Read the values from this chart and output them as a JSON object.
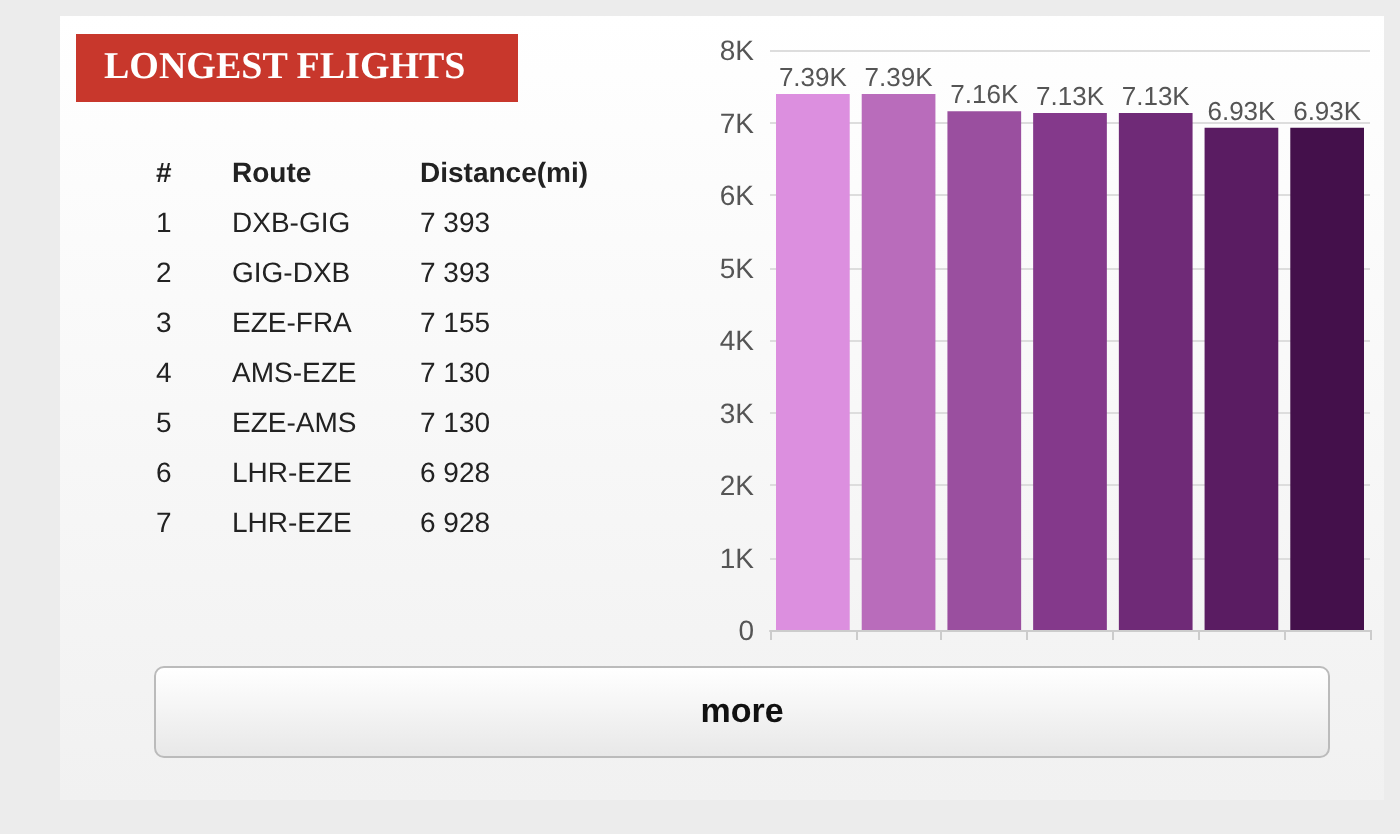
{
  "chart_data": {
    "type": "bar",
    "title": "LONGEST FLIGHTS",
    "categories": [
      null,
      null,
      null,
      null,
      null,
      null,
      null
    ],
    "values": [
      7393,
      7393,
      7155,
      7130,
      7130,
      6928,
      6928
    ],
    "colors": [
      "#dc8fdf",
      "#b96cbb",
      "#9a4f9f",
      "#84398b",
      "#6f2a77",
      "#5a1c62",
      "#44104b"
    ],
    "value_labels": [
      "7.39K",
      "7.39K",
      "7.16K",
      "7.13K",
      "7.13K",
      "6.93K",
      "6.93K"
    ],
    "ylim": [
      0,
      8000
    ],
    "yticks": [
      {
        "value": 0,
        "label": "0"
      },
      {
        "value": 1000,
        "label": "1K"
      },
      {
        "value": 2000,
        "label": "2K"
      },
      {
        "value": 3000,
        "label": "3K"
      },
      {
        "value": 4000,
        "label": "4K"
      },
      {
        "value": 5000,
        "label": "5K"
      },
      {
        "value": 6000,
        "label": "6K"
      },
      {
        "value": 7000,
        "label": "7K"
      },
      {
        "value": 8000,
        "label": "8K"
      }
    ],
    "grid": "y",
    "annotations": [
      "#",
      "Route",
      "Distance(mi)",
      "1",
      "DXB-GIG",
      "7 393",
      "2",
      "GIG-DXB",
      "7 393",
      "3",
      "EZE-FRA",
      "7 155",
      "4",
      "AMS-EZE",
      "7 130",
      "5",
      "EZE-AMS",
      "7 130",
      "6",
      "LHR-EZE",
      "6 928",
      "7",
      "LHR-EZE",
      "6 928",
      "more"
    ]
  }
}
